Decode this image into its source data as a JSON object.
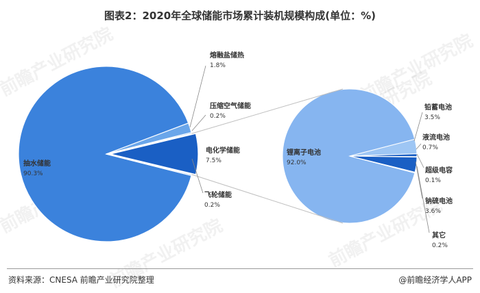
{
  "title": "图表2：2020年全球储能市场累计装机规模构成(单位：%)",
  "footer": {
    "source": "资料来源：CNESA 前瞻产业研究院整理",
    "credit": "@前瞻经济学人APP"
  },
  "watermark": "前瞻产业研究院",
  "colors": {
    "main_pie": "#3b82dc",
    "main_small": "#6aa6ea",
    "main_highlight": "#1a5fc4",
    "sub_pie": "#86b5f0",
    "sub_dark": "#1a5fc4",
    "sub_light": "#9ec6f4",
    "connector": "#bfbfbf",
    "leader": "#888888"
  },
  "chart_data": [
    {
      "type": "pie",
      "title": "",
      "slices": [
        {
          "label": "抽水储能",
          "value": 90.3
        },
        {
          "label": "熔融盐储热",
          "value": 1.8
        },
        {
          "label": "压缩空气储能",
          "value": 0.2
        },
        {
          "label": "电化学储能",
          "value": 7.5
        },
        {
          "label": "飞轮储能",
          "value": 0.2
        }
      ],
      "exploded": "电化学储能"
    },
    {
      "type": "pie",
      "title": "",
      "parent": "电化学储能",
      "slices": [
        {
          "label": "锂离子电池",
          "value": 92.0
        },
        {
          "label": "铅蓄电池",
          "value": 3.5
        },
        {
          "label": "液流电池",
          "value": 0.7
        },
        {
          "label": "超级电容",
          "value": 0.1
        },
        {
          "label": "钠硫电池",
          "value": 3.6
        },
        {
          "label": "其它",
          "value": 0.2
        }
      ]
    }
  ]
}
